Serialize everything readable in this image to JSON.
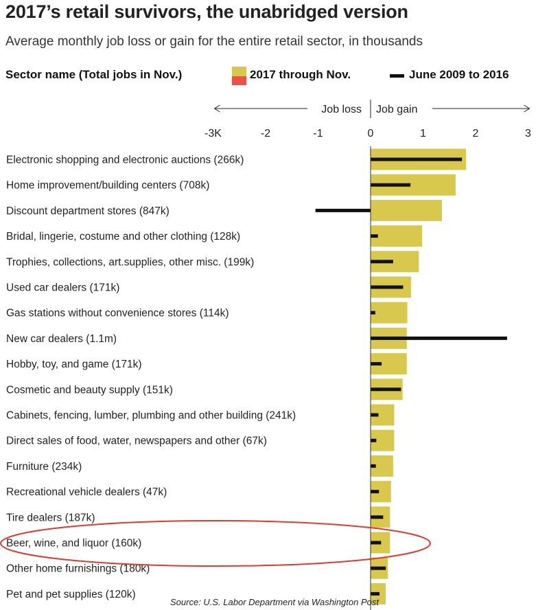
{
  "title": "2017’s retail survivors, the unabridged version",
  "subtitle": "Average monthly job loss or gain for the entire retail sector, in thousands",
  "legend": {
    "sector_header": "Sector name (Total jobs in Nov.)",
    "series_2017": "2017 through Nov.",
    "series_hist": "June 2009 to 2016"
  },
  "source": "Source: U.S. Labor Department via Washington Post",
  "colors": {
    "gain_2017": "#d9c84e",
    "loss_2017": "#f0504a",
    "historical": "#111111",
    "highlight": "#e0392f"
  },
  "chart_data": {
    "type": "bar",
    "orientation": "horizontal",
    "direction_labels": {
      "loss": "Job loss",
      "gain": "Job gain"
    },
    "xlim": [
      -3,
      3
    ],
    "x_ticks": [
      {
        "value": -3,
        "label": "-3K"
      },
      {
        "value": -2,
        "label": "-2"
      },
      {
        "value": -1,
        "label": "-1"
      },
      {
        "value": 0,
        "label": "0"
      },
      {
        "value": 1,
        "label": "1"
      },
      {
        "value": 2,
        "label": "2"
      },
      {
        "value": 3,
        "label": "3"
      }
    ],
    "categories": [
      "Electronic shopping and electronic auctions (266k)",
      "Home improvement/building centers (708k)",
      "Discount department stores (847k)",
      "Bridal, lingerie, costume and other clothing (128k)",
      "Trophies, collections, art.supplies, other misc. (199k)",
      "Used car dealers (171k)",
      "Gas stations without convenience stores (114k)",
      "New car dealers (1.1m)",
      "Hobby, toy, and game (171k)",
      "Cosmetic and beauty supply (151k)",
      "Cabinets, fencing, lumber, plumbing and other building (241k)",
      "Direct sales of food, water, newspapers and other (67k)",
      "Furniture (234k)",
      "Recreational vehicle dealers (47k)",
      "Tire dealers (187k)",
      "Beer, wine, and liquor (160k)",
      "Other home furnishings (180k)",
      "Pet and pet supplies (120k)"
    ],
    "series": [
      {
        "name": "2017 through Nov.",
        "values": [
          1.82,
          1.62,
          1.36,
          0.98,
          0.92,
          0.77,
          0.7,
          0.69,
          0.69,
          0.61,
          0.45,
          0.45,
          0.43,
          0.39,
          0.37,
          0.37,
          0.33,
          0.29
        ]
      },
      {
        "name": "June 2009 to 2016",
        "values": [
          1.74,
          0.76,
          -1.05,
          0.14,
          0.43,
          0.62,
          0.09,
          2.6,
          0.21,
          0.58,
          0.15,
          0.11,
          0.1,
          0.16,
          0.24,
          0.2,
          0.29,
          0.17
        ]
      }
    ],
    "highlighted_category": "Beer, wine, and liquor (160k)",
    "grid": false
  }
}
